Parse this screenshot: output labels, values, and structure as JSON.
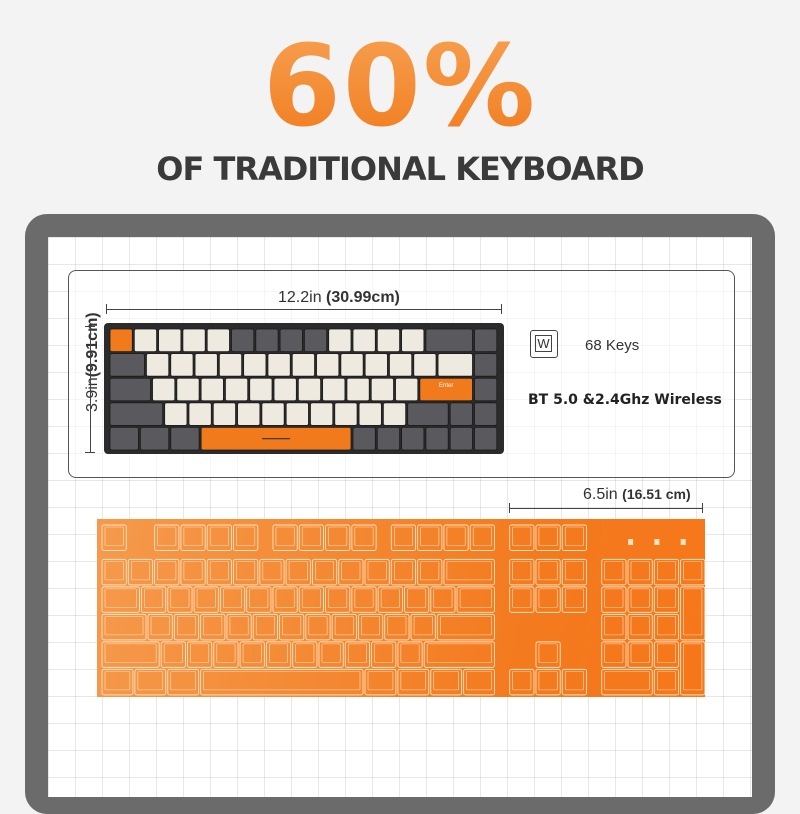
{
  "header": {
    "title": "60%",
    "subtitle": "OF TRADITIONAL KEYBOARD"
  },
  "dimensions": {
    "width_in": "12.2in",
    "width_cm": "(30.99cm)",
    "height_in": "3.9in",
    "height_cm": "(9.91cm)",
    "diff_in": "6.5in",
    "diff_cm": "(16.51 cm)"
  },
  "features": {
    "key_icon_letter": "W",
    "keys": "68 Keys",
    "wireless": "BT 5.0 &2.4Ghz Wireless"
  },
  "small_keyboard": {
    "enter_label": "Enter"
  },
  "colors": {
    "orange": "#f07a1c",
    "gray": "#5a5a5e",
    "beige": "#efeadf",
    "dark": "#2b2b2b"
  }
}
